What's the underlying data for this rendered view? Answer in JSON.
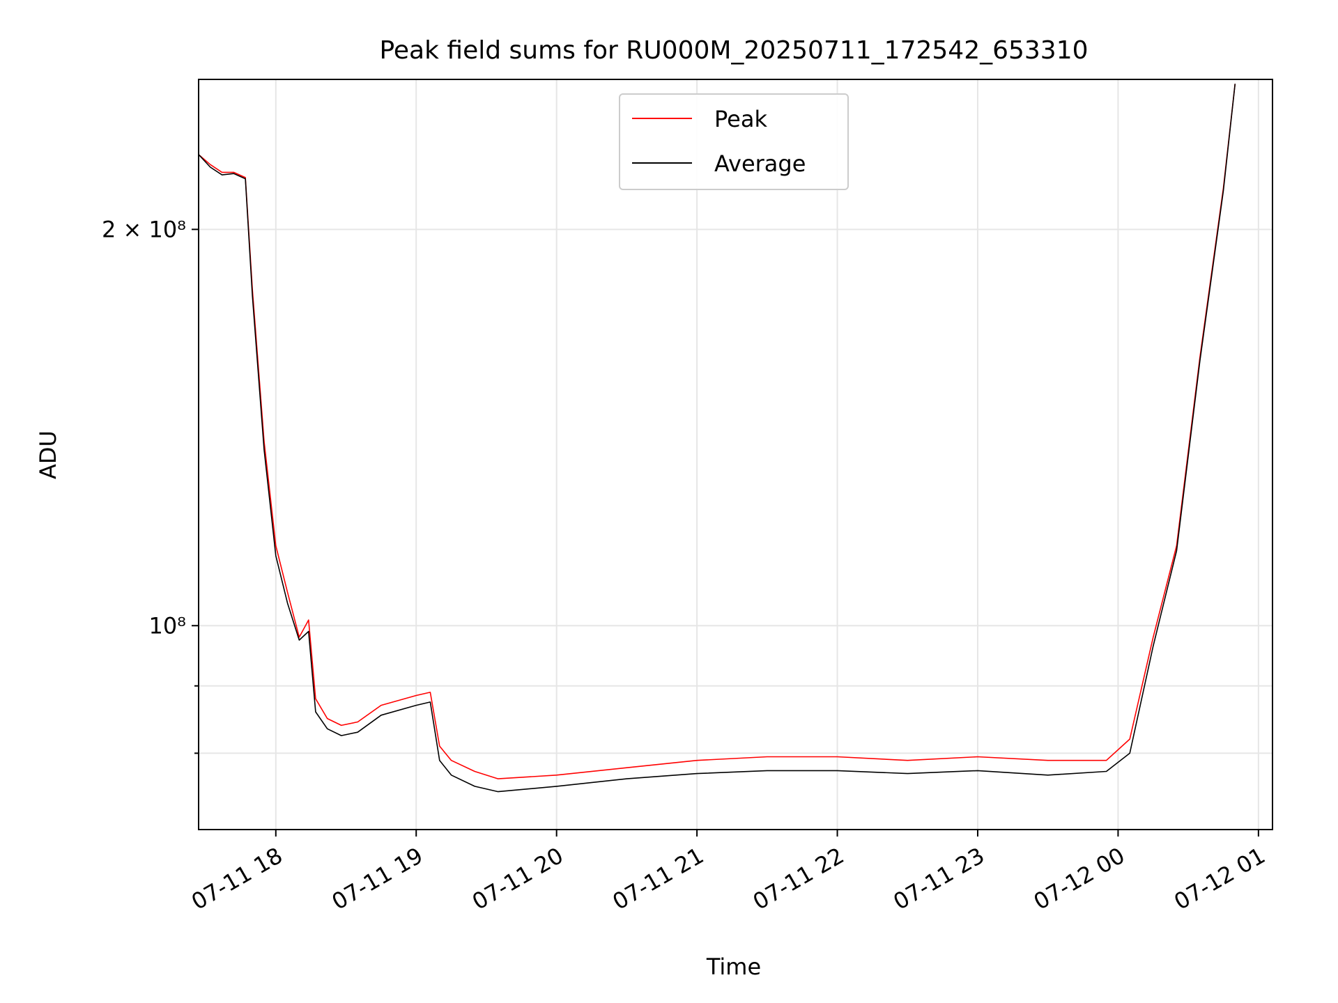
{
  "chart_data": {
    "type": "line",
    "title": "Peak field sums for RU000M_20250711_172542_653310",
    "xlabel": "Time",
    "ylabel": "ADU",
    "x_ticks": [
      "07-11 18",
      "07-11 19",
      "07-11 20",
      "07-11 21",
      "07-11 22",
      "07-11 23",
      "07-12 00",
      "07-12 01"
    ],
    "y_ticks": [
      "2 × 10⁸",
      "10⁸"
    ],
    "yscale": "log",
    "xlim": [
      "2025-07-11 17:27",
      "2025-07-12 01:06"
    ],
    "ylim": [
      70000000,
      260000000
    ],
    "grid": true,
    "legend_position": "upper center",
    "colors": {
      "Peak": "#ff0000",
      "Average": "#000000"
    },
    "series": [
      {
        "name": "Peak",
        "x": [
          "2025-07-11 17:27",
          "2025-07-11 17:32",
          "2025-07-11 17:37",
          "2025-07-11 17:42",
          "2025-07-11 17:47",
          "2025-07-11 17:50",
          "2025-07-11 17:55",
          "2025-07-11 18:00",
          "2025-07-11 18:05",
          "2025-07-11 18:10",
          "2025-07-11 18:14",
          "2025-07-11 18:17",
          "2025-07-11 18:22",
          "2025-07-11 18:28",
          "2025-07-11 18:35",
          "2025-07-11 18:45",
          "2025-07-11 19:00",
          "2025-07-11 19:06",
          "2025-07-11 19:10",
          "2025-07-11 19:15",
          "2025-07-11 19:25",
          "2025-07-11 19:35",
          "2025-07-11 20:00",
          "2025-07-11 20:30",
          "2025-07-11 21:00",
          "2025-07-11 21:30",
          "2025-07-11 22:00",
          "2025-07-11 22:30",
          "2025-07-11 23:00",
          "2025-07-11 23:30",
          "2025-07-11 23:55",
          "2025-07-12 00:05",
          "2025-07-12 00:15",
          "2025-07-12 00:25",
          "2025-07-12 00:35",
          "2025-07-12 00:45",
          "2025-07-12 00:50"
        ],
        "values": [
          228000000,
          224000000,
          221000000,
          221000000,
          219000000,
          180000000,
          138000000,
          115000000,
          106000000,
          98000000,
          101000000,
          88000000,
          85000000,
          84000000,
          84500000,
          87000000,
          88500000,
          89000000,
          81000000,
          79000000,
          77500000,
          76500000,
          77000000,
          78000000,
          79000000,
          79500000,
          79500000,
          79000000,
          79500000,
          79000000,
          79000000,
          82000000,
          98000000,
          115000000,
          160000000,
          215000000,
          258000000
        ]
      },
      {
        "name": "Average",
        "x": [
          "2025-07-11 17:27",
          "2025-07-11 17:32",
          "2025-07-11 17:37",
          "2025-07-11 17:42",
          "2025-07-11 17:47",
          "2025-07-11 17:50",
          "2025-07-11 17:55",
          "2025-07-11 18:00",
          "2025-07-11 18:05",
          "2025-07-11 18:10",
          "2025-07-11 18:14",
          "2025-07-11 18:17",
          "2025-07-11 18:22",
          "2025-07-11 18:28",
          "2025-07-11 18:35",
          "2025-07-11 18:45",
          "2025-07-11 19:00",
          "2025-07-11 19:06",
          "2025-07-11 19:10",
          "2025-07-11 19:15",
          "2025-07-11 19:25",
          "2025-07-11 19:35",
          "2025-07-11 20:00",
          "2025-07-11 20:30",
          "2025-07-11 21:00",
          "2025-07-11 21:30",
          "2025-07-11 22:00",
          "2025-07-11 22:30",
          "2025-07-11 23:00",
          "2025-07-11 23:30",
          "2025-07-11 23:55",
          "2025-07-12 00:05",
          "2025-07-12 00:15",
          "2025-07-12 00:25",
          "2025-07-12 00:35",
          "2025-07-12 00:45",
          "2025-07-12 00:50"
        ],
        "values": [
          228000000,
          223000000,
          220000000,
          220500000,
          218500000,
          178000000,
          136000000,
          113000000,
          104000000,
          97500000,
          99000000,
          86000000,
          83500000,
          82500000,
          83000000,
          85500000,
          87000000,
          87500000,
          79000000,
          77000000,
          75500000,
          74800000,
          75500000,
          76500000,
          77200000,
          77600000,
          77600000,
          77200000,
          77600000,
          77000000,
          77500000,
          80000000,
          96500000,
          114000000,
          159000000,
          214000000,
          258000000
        ]
      }
    ]
  }
}
